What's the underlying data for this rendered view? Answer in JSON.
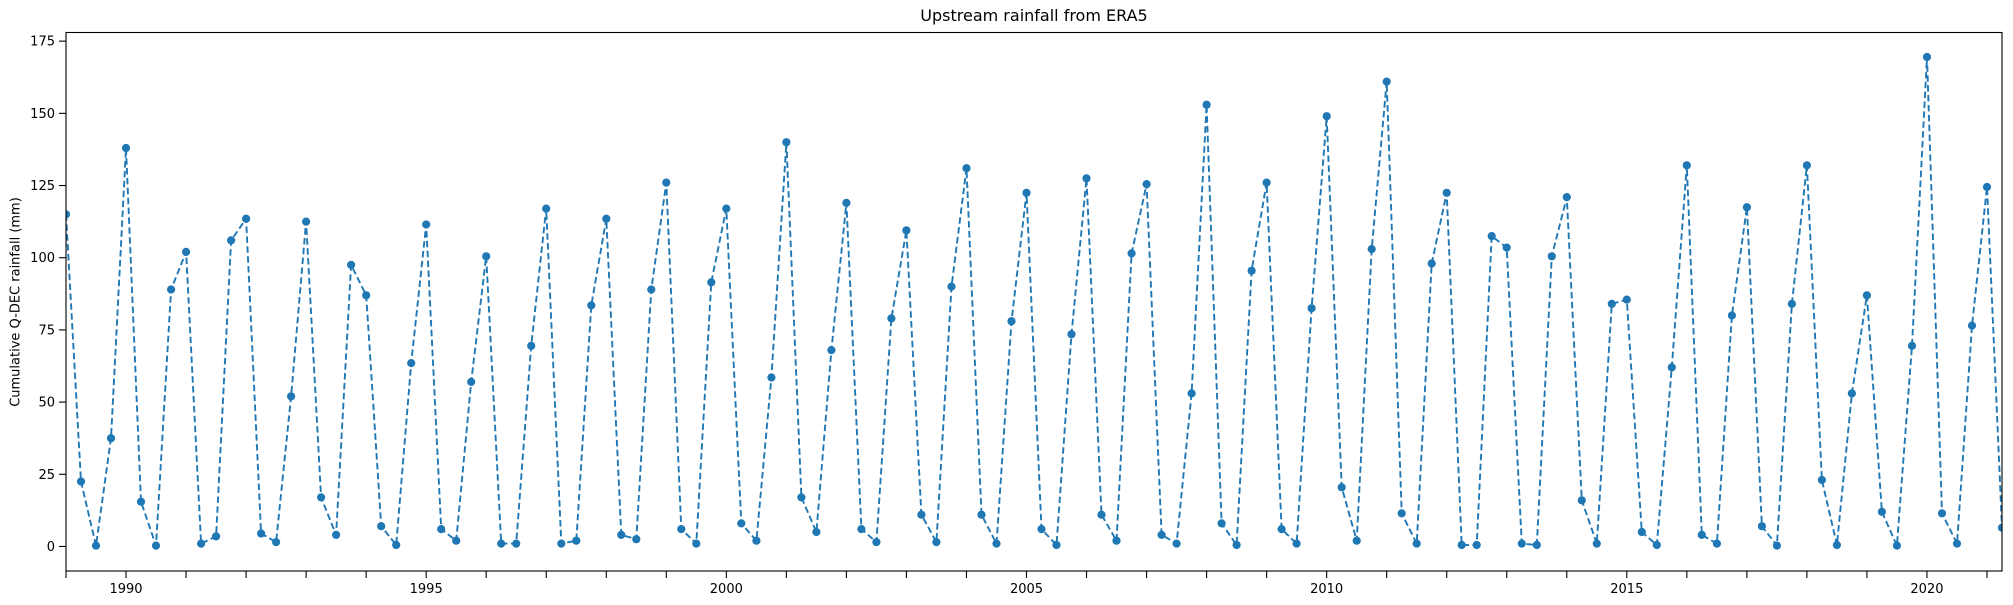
{
  "figure": {
    "title": "Upstream rainfall from ERA5",
    "background": "#ffffff",
    "text_color": "#000000"
  },
  "chart_data": {
    "type": "line",
    "title": "Upstream rainfall from ERA5",
    "xlabel": "",
    "ylabel": "Cumulative Q-DEC rainfall (mm)",
    "line_style": "dashed",
    "marker": "circle",
    "series_color": "#1f77b4",
    "grid": false,
    "legend": "none",
    "xlim_years": [
      1989.0,
      2021.25
    ],
    "ylim": [
      -8.5,
      178
    ],
    "y_ticks": [
      0,
      25,
      50,
      75,
      100,
      125,
      150,
      175
    ],
    "x_major_tick_labels": [
      "1990",
      "1995",
      "2000",
      "2005",
      "2010",
      "2015",
      "2020"
    ],
    "x_major_tick_years": [
      1990,
      1995,
      2000,
      2005,
      2010,
      2015,
      2020
    ],
    "x_minor_ticks": "every year 1989-2021",
    "frequency": "quarterly (Q-DEC, quarter-end points)",
    "start_period": "1988Q4",
    "end_period": "2021Q1",
    "values": [
      115,
      22.5,
      0.3,
      37.5,
      138,
      15.5,
      0.3,
      89,
      102,
      1,
      3.5,
      106,
      113.5,
      4.5,
      1.5,
      52,
      112.5,
      17,
      4,
      97.5,
      87,
      7,
      0.5,
      63.5,
      111.5,
      6,
      2,
      57,
      100.5,
      1,
      1,
      69.5,
      117,
      1,
      2,
      83.5,
      113.5,
      4,
      2.5,
      89,
      126,
      6,
      1,
      91.5,
      117,
      8,
      2,
      58.5,
      140,
      17,
      5,
      68,
      119,
      6,
      1.5,
      79,
      109.5,
      11,
      1.5,
      90,
      131,
      11,
      1,
      78,
      122.5,
      6,
      0.5,
      73.5,
      127.5,
      11,
      2,
      101.5,
      125.5,
      4,
      1,
      53,
      153,
      8,
      0.5,
      95.5,
      126,
      6,
      1,
      82.5,
      149,
      20.5,
      2,
      103,
      161,
      11.5,
      1,
      98,
      122.5,
      0.5,
      0.5,
      107.5,
      103.5,
      1,
      0.5,
      100.5,
      121,
      16,
      1,
      84,
      85.5,
      5,
      0.5,
      62,
      132,
      4,
      1,
      80,
      117.5,
      7,
      0.3,
      84,
      132,
      23,
      0.5,
      53,
      87,
      12,
      0.3,
      69.5,
      169.5,
      11.5,
      1,
      76.5,
      124.5,
      6.5
    ]
  }
}
